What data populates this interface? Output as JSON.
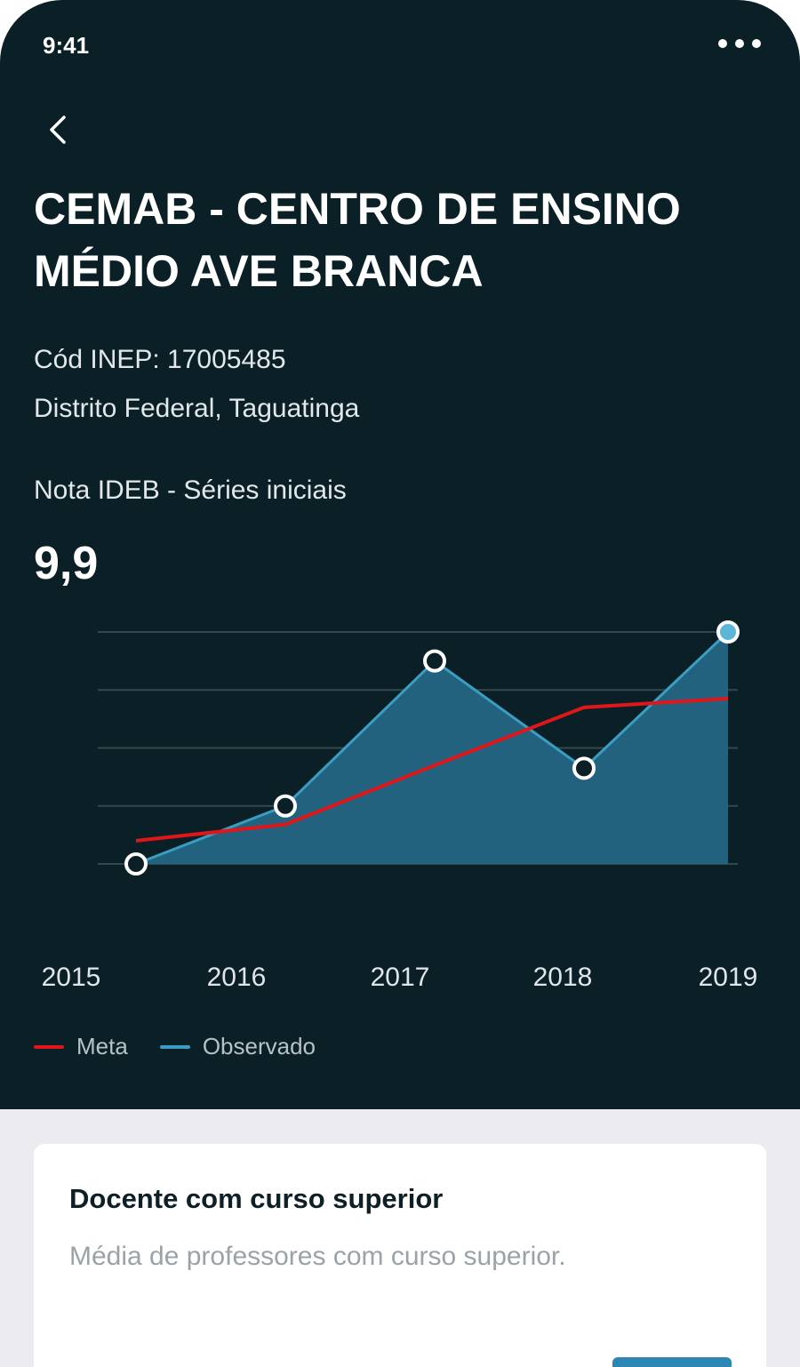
{
  "status_bar": {
    "time": "9:41",
    "more_icon": "more-dots-icon"
  },
  "nav": {
    "back_icon": "chevron-left-icon"
  },
  "school": {
    "name": "CEMAB - CENTRO DE ENSINO MÉDIO AVE BRANCA",
    "inep": "Cód INEP: 17005485",
    "location": "Distrito Federal, Taguatinga"
  },
  "ideb": {
    "label": "Nota IDEB - Séries iniciais",
    "value": "9,9"
  },
  "chart_data": {
    "type": "area",
    "categories": [
      "2015",
      "2016",
      "2017",
      "2018",
      "2019"
    ],
    "series": [
      {
        "name": "Observado",
        "values": [
          0.0,
          1.0,
          3.5,
          1.65,
          4.0
        ],
        "color": "#3a9dc2"
      },
      {
        "name": "Meta",
        "values": [
          0.4,
          0.68,
          1.7,
          2.7,
          2.85
        ],
        "color": "#e0161b"
      }
    ],
    "ylim": [
      0,
      4
    ],
    "grid": true,
    "legend": "bottom-left"
  },
  "legend": {
    "meta_label": "Meta",
    "observed_label": "Observado"
  },
  "colors": {
    "background": "#0b2026",
    "observed": "#3a9dc2",
    "meta": "#e0161b",
    "bars": "#2d87b5"
  },
  "card": {
    "title": "Docente com curso superior",
    "subtitle": "Média de professores com curso superior."
  }
}
